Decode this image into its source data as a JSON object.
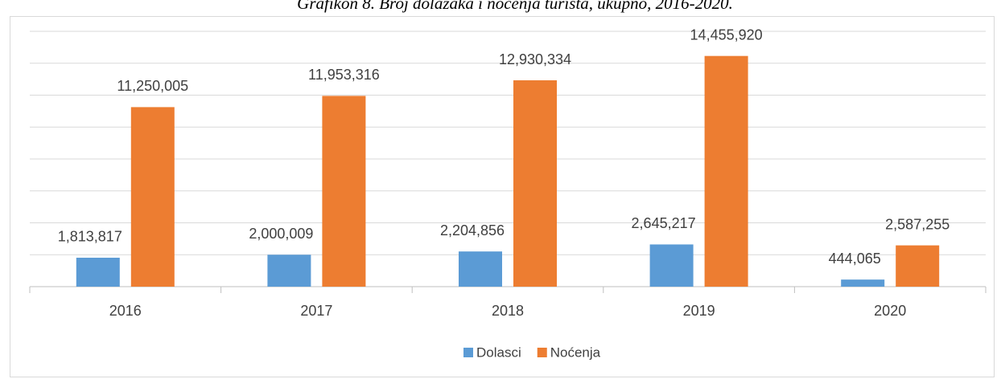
{
  "chart_data": {
    "type": "bar",
    "title": "Grafikon 8. Broj dolazaka i noćenja turista, ukupno, 2016-2020.",
    "categories": [
      "2016",
      "2017",
      "2018",
      "2019",
      "2020"
    ],
    "series": [
      {
        "name": "Dolasci",
        "color": "#5b9bd5",
        "values": [
          1813817,
          2000009,
          2204856,
          2645217,
          444065
        ],
        "value_labels": [
          "1,813,817",
          "2,000,009",
          "2,204,856",
          "2,645,217",
          "444,065"
        ]
      },
      {
        "name": "Noćenja",
        "color": "#ed7d31",
        "values": [
          11250005,
          11953316,
          12930334,
          14455920,
          2587255
        ],
        "value_labels": [
          "11,250,005",
          "11,953,316",
          "12,930,334",
          "14,455,920",
          "2,587,255"
        ]
      }
    ],
    "ylim": [
      0,
      16000000
    ],
    "yticks": [
      0,
      2000000,
      4000000,
      6000000,
      8000000,
      10000000,
      12000000,
      14000000,
      16000000
    ],
    "grid": true,
    "legend": "bottom"
  }
}
